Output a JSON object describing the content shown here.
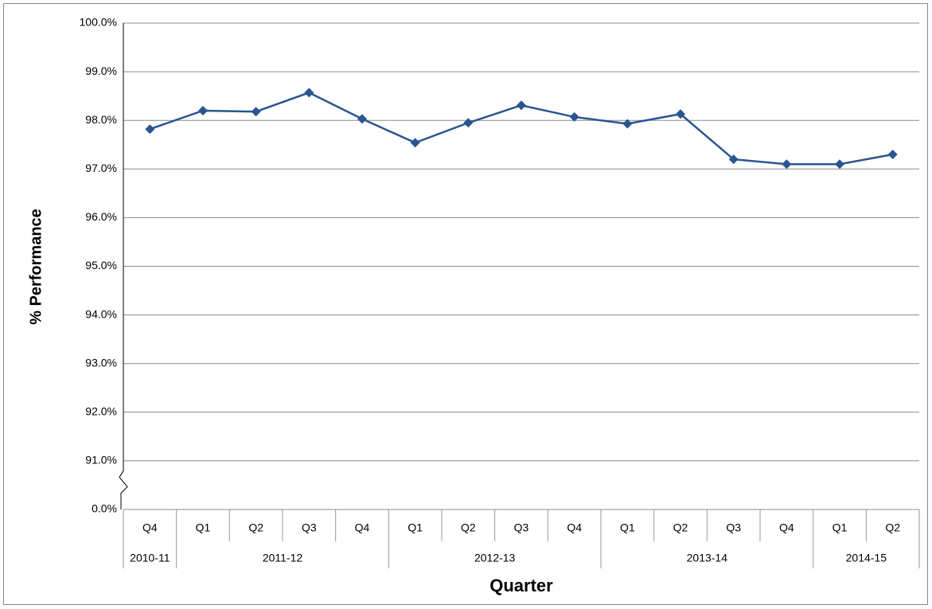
{
  "chart_data": {
    "type": "line",
    "y_label": "% Performance",
    "x_label": "Quarter",
    "categories": [
      "Q4",
      "Q1",
      "Q2",
      "Q3",
      "Q4",
      "Q1",
      "Q2",
      "Q3",
      "Q4",
      "Q1",
      "Q2",
      "Q3",
      "Q4",
      "Q1",
      "Q2"
    ],
    "category_groups": [
      {
        "label": "2010-11",
        "count": 1
      },
      {
        "label": "2011-12",
        "count": 4
      },
      {
        "label": "2012-13",
        "count": 4
      },
      {
        "label": "2013-14",
        "count": 4
      },
      {
        "label": "2014-15",
        "count": 2
      }
    ],
    "values": [
      97.82,
      98.2,
      98.18,
      98.57,
      98.03,
      97.54,
      97.95,
      98.31,
      98.07,
      97.93,
      98.13,
      97.2,
      97.1,
      97.1,
      97.3
    ],
    "color": "#2b5591",
    "ylim": [
      0,
      100
    ],
    "yticks": [
      {
        "value": 0,
        "label": "0.0%"
      },
      {
        "value": 91,
        "label": "91.0%"
      },
      {
        "value": 92,
        "label": "92.0%"
      },
      {
        "value": 93,
        "label": "93.0%"
      },
      {
        "value": 94,
        "label": "94.0%"
      },
      {
        "value": 95,
        "label": "95.0%"
      },
      {
        "value": 96,
        "label": "96.0%"
      },
      {
        "value": 97,
        "label": "97.0%"
      },
      {
        "value": 98,
        "label": "98.0%"
      },
      {
        "value": 99,
        "label": "99.0%"
      },
      {
        "value": 100,
        "label": "100.0%"
      }
    ],
    "grid": true,
    "axis_break": true
  }
}
